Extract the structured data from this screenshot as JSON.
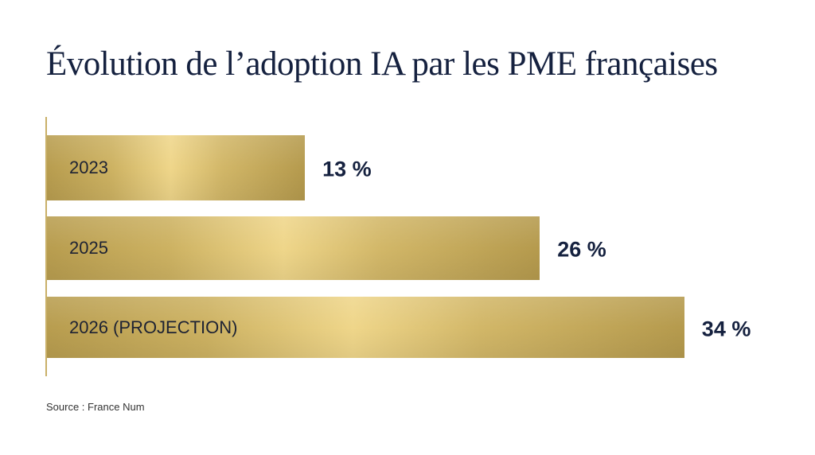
{
  "chart_data": {
    "type": "bar",
    "orientation": "horizontal",
    "title": "Évolution de l’adoption IA par les PME françaises",
    "categories": [
      "2023",
      "2025",
      "2026 (PROJECTION)"
    ],
    "values": [
      13,
      26,
      34
    ],
    "value_labels": [
      "13 %",
      "26 %",
      "34 %"
    ],
    "unit": "%",
    "grid": false,
    "colors": {
      "bar": "#d4b968",
      "text": "#15213f",
      "axis": "#c9b068"
    },
    "source": "Source : France Num"
  }
}
